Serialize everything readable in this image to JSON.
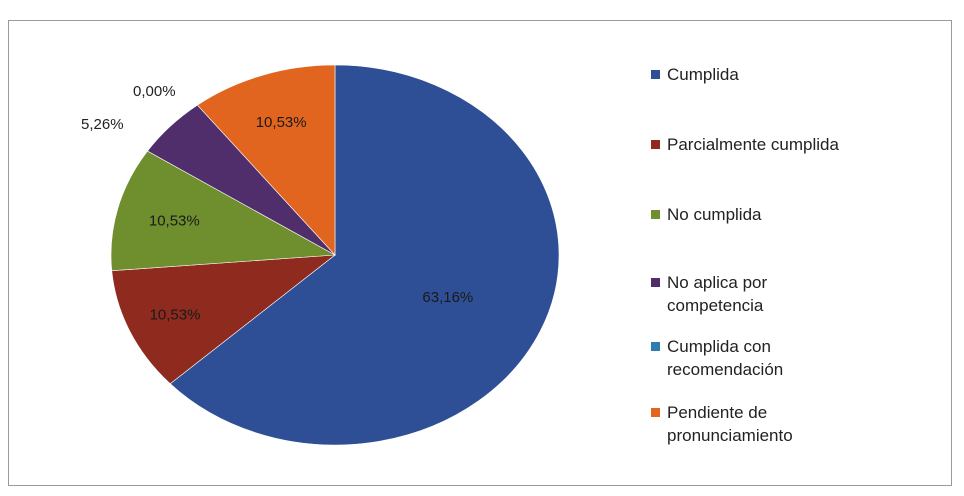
{
  "chart_data": {
    "type": "pie",
    "title": "",
    "slices": [
      {
        "label": "Cumplida",
        "value": 63.16,
        "display": "63,16%",
        "color": "#2E4E95"
      },
      {
        "label": "Parcialmente cumplida",
        "value": 10.53,
        "display": "10,53%",
        "color": "#8E2B1E"
      },
      {
        "label": "No cumplida",
        "value": 10.53,
        "display": "10,53%",
        "color": "#6F8E2E"
      },
      {
        "label": "No aplica por competencia",
        "value": 5.26,
        "display": "5,26%",
        "color": "#4F2E6B"
      },
      {
        "label": "Cumplida con recomendación",
        "value": 0.0,
        "display": "0,00%",
        "color": "#2F7DAE"
      },
      {
        "label": "Pendiente de pronunciamiento",
        "value": 10.53,
        "display": "10,53%",
        "color": "#E2651F"
      }
    ],
    "legend_position": "right",
    "legend": [
      "Cumplida",
      "Parcialmente cumplida",
      "No cumplida",
      "No aplica por\ncompetencia",
      "Cumplida con\nrecomendación",
      "Pendiente de\npronunciamiento"
    ]
  }
}
